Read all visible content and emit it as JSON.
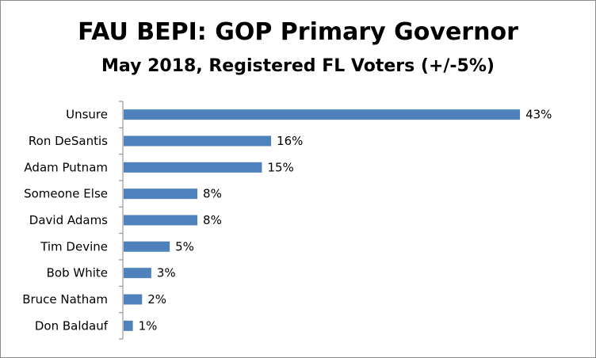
{
  "chart_data": {
    "type": "bar",
    "orientation": "horizontal",
    "title": "FAU BEPI: GOP Primary Governor",
    "subtitle": "May 2018, Registered FL Voters (+/-5%)",
    "categories": [
      "Unsure",
      "Ron DeSantis",
      "Adam Putnam",
      "Someone Else",
      "David Adams",
      "Tim Devine",
      "Bob White",
      "Bruce Natham",
      "Don Baldauf"
    ],
    "values": [
      43,
      16,
      15,
      8,
      8,
      5,
      3,
      2,
      1
    ],
    "value_labels": [
      "43%",
      "16%",
      "15%",
      "8%",
      "8%",
      "5%",
      "3%",
      "2%",
      "1%"
    ],
    "unit": "%",
    "bar_color": "#4f81bd",
    "grid": false,
    "legend": "none"
  }
}
